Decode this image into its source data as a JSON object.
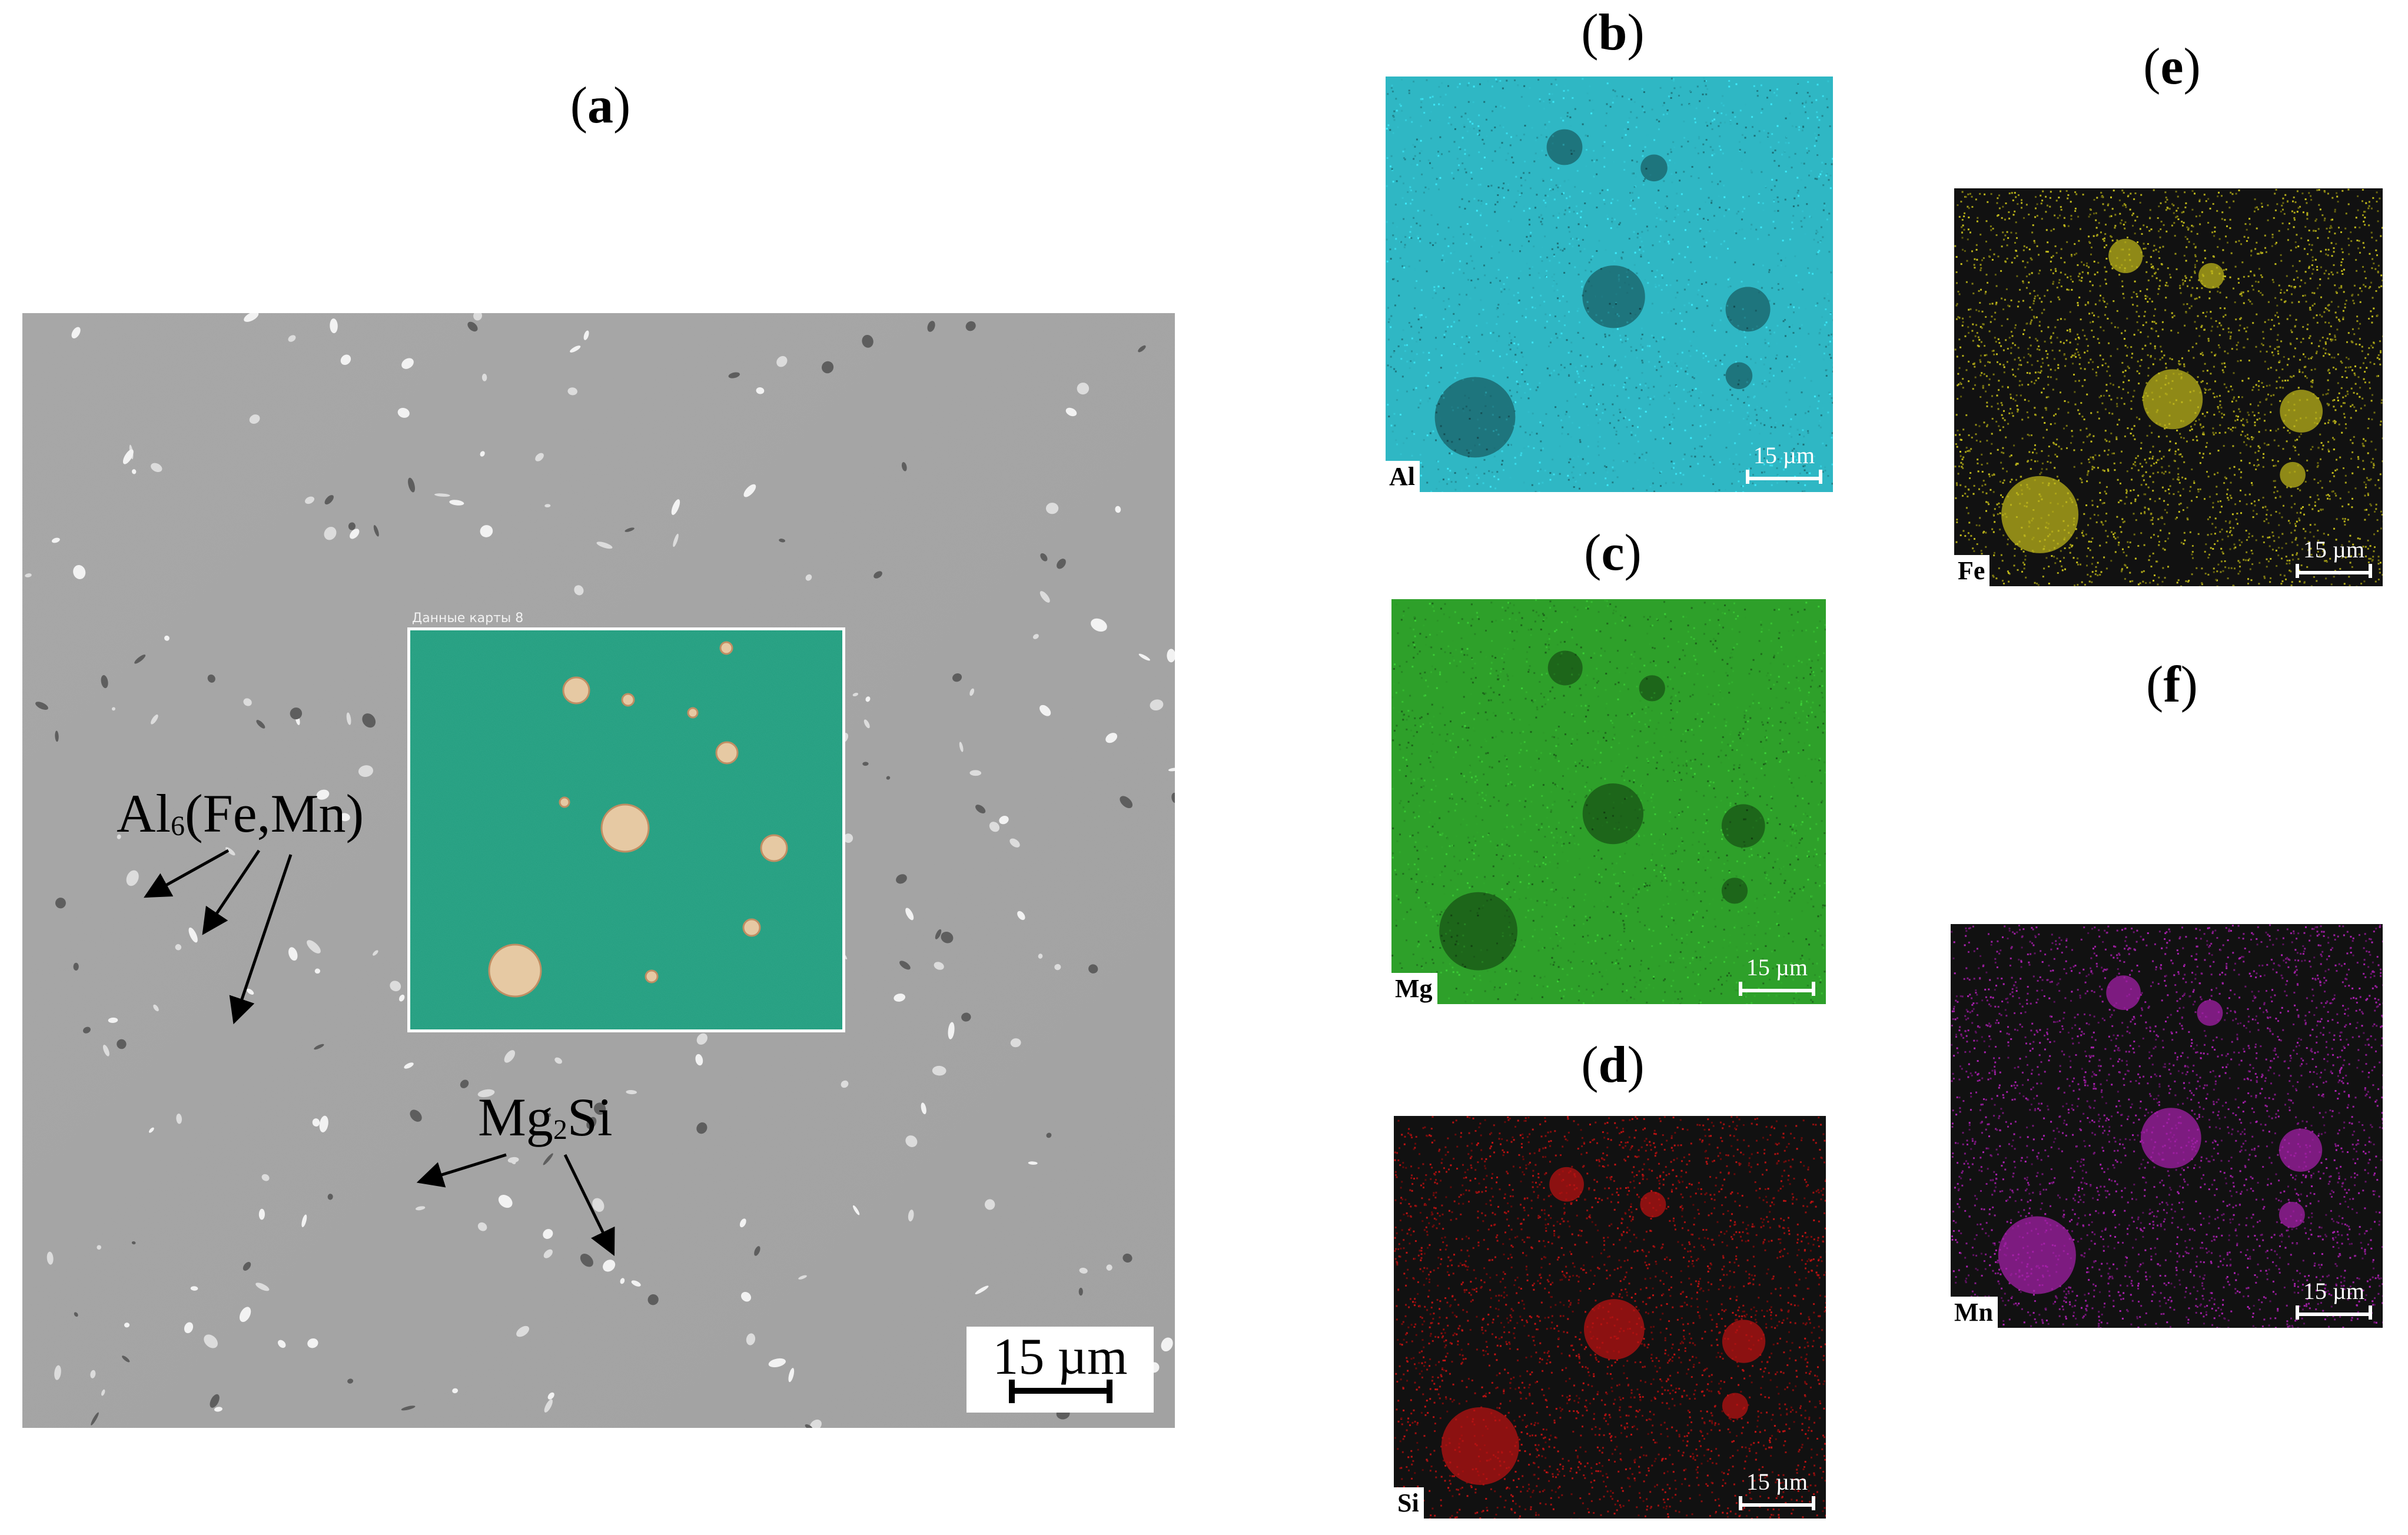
{
  "panels": {
    "a": {
      "label": "a"
    },
    "b": {
      "label": "b",
      "element": "Al",
      "scale": "15 µm",
      "color": "#2fb7c4"
    },
    "c": {
      "label": "c",
      "element": "Mg",
      "scale": "15 µm",
      "color": "#2ea02a"
    },
    "d": {
      "label": "d",
      "element": "Si",
      "scale": "15 µm",
      "color": "#b51212"
    },
    "e": {
      "label": "e",
      "element": "Fe",
      "scale": "15 µm",
      "color": "#b9b21a"
    },
    "f": {
      "label": "f",
      "element": "Mn",
      "scale": "15 µm",
      "color": "#a21fa6"
    }
  },
  "sem": {
    "scale": "15 µm",
    "inset_caption": "Данные карты 8",
    "annotations": {
      "intermetallic": {
        "a": "Al",
        "a_sub": "6",
        "b": "(Fe,Mn)"
      },
      "mg2si": {
        "a": "Mg",
        "a_sub": "2",
        "b": "Si"
      }
    }
  },
  "colors": {
    "sem_background": "#a5a5a5",
    "inset_background": "#1f9c7c"
  }
}
